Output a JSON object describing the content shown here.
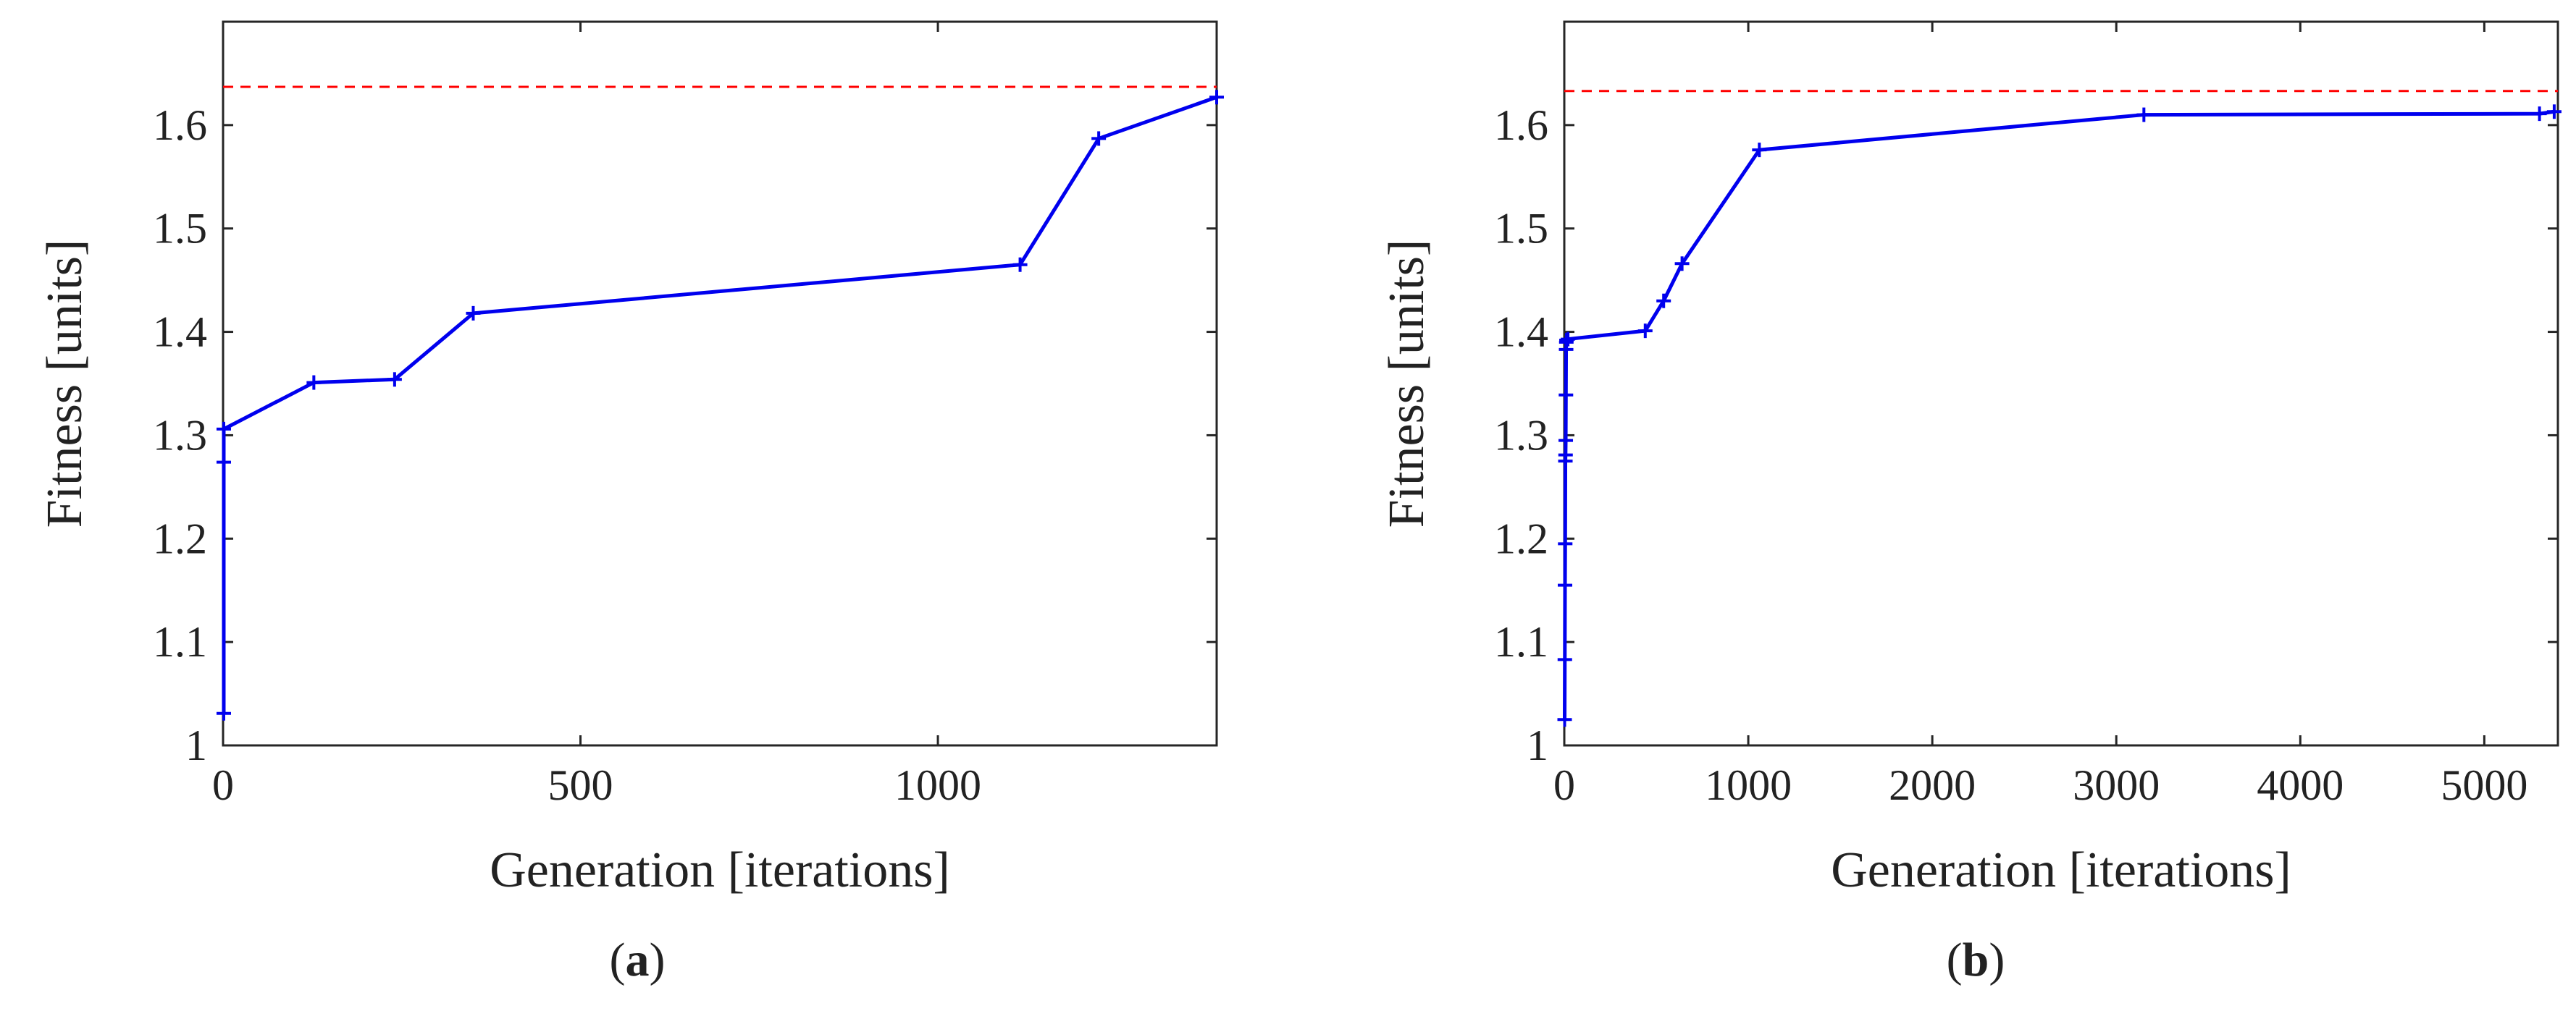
{
  "chart_data": [
    {
      "type": "line",
      "panel_label": "a",
      "xlabel": "Generation [iterations]",
      "ylabel": "Fitness [units]",
      "xlim": [
        0,
        1390
      ],
      "ylim": [
        1,
        1.7
      ],
      "xticks": [
        0,
        500,
        1000
      ],
      "xtick_labels": [
        "0",
        "500",
        "1000"
      ],
      "yticks": [
        1,
        1.1,
        1.2,
        1.3,
        1.4,
        1.5,
        1.6
      ],
      "ytick_labels": [
        "1",
        "1.1",
        "1.2",
        "1.3",
        "1.4",
        "1.5",
        "1.6"
      ],
      "grid": false,
      "reference_line": {
        "y": 1.637,
        "style": "dashed",
        "color": "#ff0000"
      },
      "series": [
        {
          "name": "fitness",
          "color": "#0000ee",
          "marker": "plus",
          "x": [
            1,
            1,
            1,
            127,
            240,
            350,
            1115,
            1225,
            1390
          ],
          "y": [
            1.031,
            1.274,
            1.306,
            1.351,
            1.354,
            1.418,
            1.465,
            1.587,
            1.627
          ]
        }
      ]
    },
    {
      "type": "line",
      "panel_label": "b",
      "xlabel": "Generation [iterations]",
      "ylabel": "Fitness [units]",
      "xlim": [
        0,
        5400
      ],
      "ylim": [
        1,
        1.7
      ],
      "xticks": [
        0,
        1000,
        2000,
        3000,
        4000,
        5000
      ],
      "xtick_labels": [
        "0",
        "1000",
        "2000",
        "3000",
        "4000",
        "5000"
      ],
      "yticks": [
        1,
        1.1,
        1.2,
        1.3,
        1.4,
        1.5,
        1.6
      ],
      "ytick_labels": [
        "1",
        "1.1",
        "1.2",
        "1.3",
        "1.4",
        "1.5",
        "1.6"
      ],
      "grid": false,
      "reference_line": {
        "y": 1.633,
        "style": "dashed",
        "color": "#ff0000"
      },
      "series": [
        {
          "name": "fitness",
          "color": "#0000ee",
          "marker": "plus",
          "x": [
            2,
            3,
            4,
            5,
            6,
            7,
            8,
            9,
            10,
            11,
            12,
            20,
            440,
            540,
            640,
            1060,
            3150,
            5300,
            5380
          ],
          "y": [
            1.025,
            1.083,
            1.155,
            1.195,
            1.275,
            1.281,
            1.295,
            1.339,
            1.383,
            1.39,
            1.392,
            1.393,
            1.401,
            1.43,
            1.466,
            1.576,
            1.61,
            1.611,
            1.613
          ]
        }
      ]
    }
  ]
}
